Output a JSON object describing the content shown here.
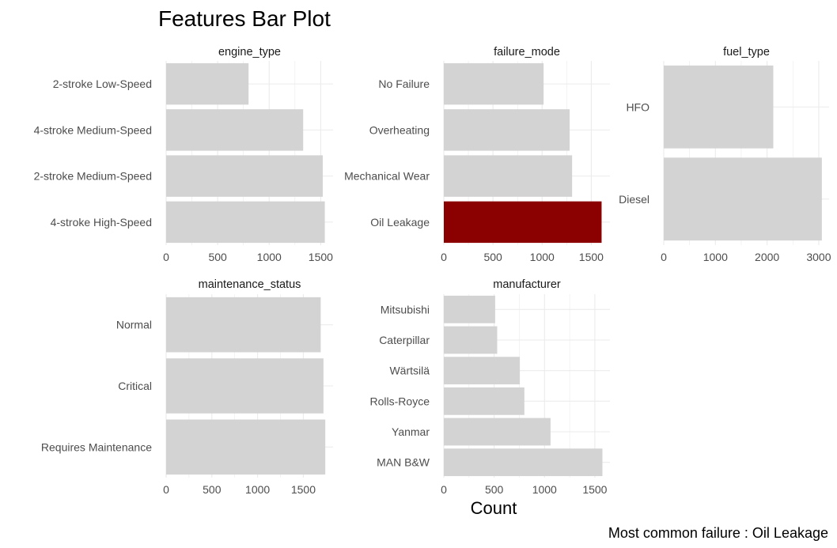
{
  "chart_data": {
    "type": "bar",
    "orientation": "horizontal",
    "title": "Features Bar Plot",
    "xlabel": "Count",
    "caption": "Most common failure : Oil Leakage",
    "colors": {
      "default": "#d3d3d3",
      "highlight": "#8b0000",
      "grid": "#ebebeb"
    },
    "grid": true,
    "panels": [
      {
        "name": "engine_type",
        "categories": [
          "2-stroke Low-Speed",
          "4-stroke Medium-Speed",
          "2-stroke Medium-Speed",
          "4-stroke High-Speed"
        ],
        "values": [
          800,
          1330,
          1520,
          1540
        ],
        "xlim": [
          0,
          1620
        ],
        "xticks": [
          0,
          500,
          1000,
          1500
        ],
        "highlight": []
      },
      {
        "name": "failure_mode",
        "categories": [
          "No Failure",
          "Overheating",
          "Mechanical Wear",
          "Oil Leakage"
        ],
        "values": [
          1015,
          1280,
          1305,
          1605
        ],
        "xlim": [
          0,
          1690
        ],
        "xticks": [
          0,
          500,
          1000,
          1500
        ],
        "highlight": [
          3
        ]
      },
      {
        "name": "fuel_type",
        "categories": [
          "HFO",
          "Diesel"
        ],
        "values": [
          2120,
          3060
        ],
        "xlim": [
          0,
          3200
        ],
        "xticks": [
          0,
          1000,
          2000,
          3000
        ],
        "highlight": []
      },
      {
        "name": "maintenance_status",
        "categories": [
          "Normal",
          "Critical",
          "Requires Maintenance"
        ],
        "values": [
          1690,
          1720,
          1740
        ],
        "xlim": [
          0,
          1825
        ],
        "xticks": [
          0,
          500,
          1000,
          1500
        ],
        "highlight": []
      },
      {
        "name": "manufacturer",
        "categories": [
          "Mitsubishi",
          "Caterpillar",
          "Wärtsilä",
          "Rolls-Royce",
          "Yanmar",
          "MAN B&W"
        ],
        "values": [
          510,
          530,
          755,
          800,
          1060,
          1575
        ],
        "xlim": [
          0,
          1650
        ],
        "xticks": [
          0,
          500,
          1000,
          1500
        ],
        "highlight": []
      }
    ]
  }
}
